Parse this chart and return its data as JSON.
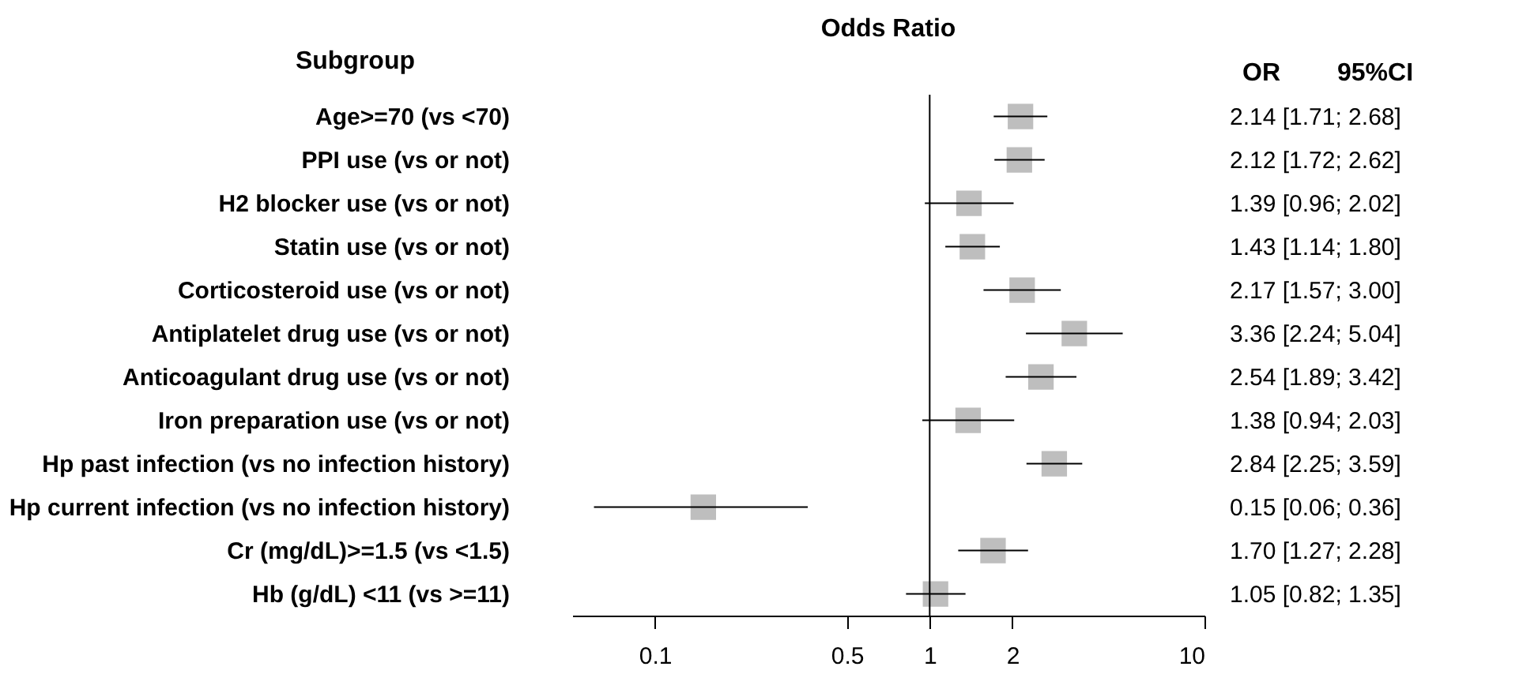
{
  "chart_data": {
    "type": "scatter",
    "orientation": "horizontal",
    "title": "Odds Ratio",
    "ylabel": "Subgroup",
    "categories": [
      "Age>=70 (vs <70)",
      "PPI use (vs or not)",
      "H2 blocker use (vs or not)",
      "Statin use (vs or not)",
      "Corticosteroid use (vs or not)",
      "Antiplatelet drug use (vs or not)",
      "Anticoagulant drug use (vs or not)",
      "Iron preparation use (vs or not)",
      "Hp past infection (vs no infection history)",
      "Hp current infection (vs no infection history)",
      "Cr (mg/dL)>=1.5 (vs <1.5)",
      "Hb (g/dL) <11 (vs >=11)"
    ],
    "values": [
      2.14,
      2.12,
      1.39,
      1.43,
      2.17,
      3.36,
      2.54,
      1.38,
      2.84,
      0.15,
      1.7,
      1.05
    ],
    "errors": [
      [
        1.71,
        2.68
      ],
      [
        1.72,
        2.62
      ],
      [
        0.96,
        2.02
      ],
      [
        1.14,
        1.8
      ],
      [
        1.57,
        3.0
      ],
      [
        2.24,
        5.04
      ],
      [
        1.89,
        3.42
      ],
      [
        0.94,
        2.03
      ],
      [
        2.25,
        3.59
      ],
      [
        0.06,
        0.36
      ],
      [
        1.27,
        2.28
      ],
      [
        0.82,
        1.35
      ]
    ],
    "value_labels": [
      "2.14 [1.71; 2.68]",
      "2.12 [1.72; 2.62]",
      "1.39 [0.96; 2.02]",
      "1.43 [1.14; 1.80]",
      "2.17 [1.57; 3.00]",
      "3.36 [2.24; 5.04]",
      "2.54 [1.89; 3.42]",
      "1.38 [0.94; 2.03]",
      "2.84 [2.25; 3.59]",
      "0.15 [0.06; 0.36]",
      "1.70 [1.27; 2.28]",
      "1.05 [0.82; 1.35]"
    ],
    "annotations": [
      "OR",
      "95%CI"
    ],
    "color": "#bebebe",
    "log": "x",
    "xlim": [
      0.05,
      10
    ],
    "xticks": [
      0.1,
      0.5,
      1,
      2,
      10
    ],
    "ref_lines": [
      {
        "axis": "x",
        "value": 1,
        "color": "#000000"
      }
    ],
    "marker": "square",
    "grid": false
  }
}
